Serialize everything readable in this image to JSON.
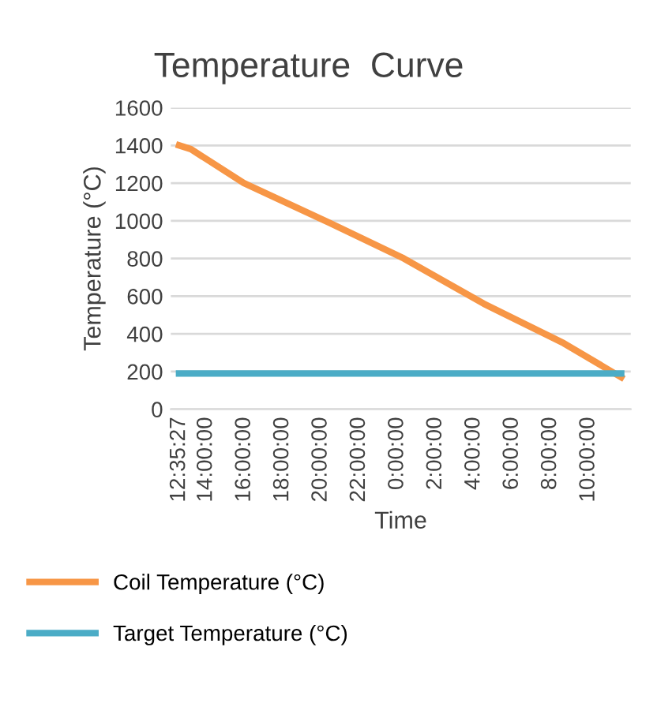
{
  "chart_data": {
    "type": "line",
    "title": "Temperature  Curve",
    "xlabel": "Time",
    "ylabel": "Temperature (°C)",
    "xlim": [
      "2000-01-01T12:09",
      "2000-01-02T12:12"
    ],
    "ylim": [
      0,
      1600
    ],
    "yticks": [
      0,
      200,
      400,
      600,
      800,
      1000,
      1200,
      1400,
      1600
    ],
    "xticks": [
      {
        "value": "2000-01-01T12:35:27",
        "label": "12:35:27"
      },
      {
        "value": "2000-01-01T14:00",
        "label": "14:00:00"
      },
      {
        "value": "2000-01-01T16:00",
        "label": "16:00:00"
      },
      {
        "value": "2000-01-01T18:00",
        "label": "18:00:00"
      },
      {
        "value": "2000-01-01T20:00",
        "label": "20:00:00"
      },
      {
        "value": "2000-01-01T22:00",
        "label": "22:00:00"
      },
      {
        "value": "2000-01-02T00:00",
        "label": "0:00:00"
      },
      {
        "value": "2000-01-02T02:00",
        "label": "2:00:00"
      },
      {
        "value": "2000-01-02T04:00",
        "label": "4:00:00"
      },
      {
        "value": "2000-01-02T06:00",
        "label": "6:00:00"
      },
      {
        "value": "2000-01-02T08:00",
        "label": "8:00:00"
      },
      {
        "value": "2000-01-02T10:00",
        "label": "10:00:00"
      }
    ],
    "grid": "y",
    "legend": "bottom",
    "marker": "none",
    "line_style": "solid",
    "series": [
      {
        "name": "Coil Temperature (°C)",
        "color": "#f79646",
        "x": [
          "2000-01-01T12:35",
          "2000-01-01T13:12",
          "2000-01-01T15:58",
          "2000-01-01T20:26",
          "2000-01-02T00:20",
          "2000-01-02T04:31",
          "2000-01-02T08:42",
          "2000-01-02T11:42"
        ],
        "values": [
          1400,
          1380,
          1200,
          990,
          800,
          560,
          350,
          170
        ]
      },
      {
        "name": "Target Temperature (°C)",
        "color": "#4bacc6",
        "x": [
          "2000-01-01T12:35",
          "2000-01-02T11:42"
        ],
        "values": [
          190,
          190
        ]
      }
    ]
  }
}
